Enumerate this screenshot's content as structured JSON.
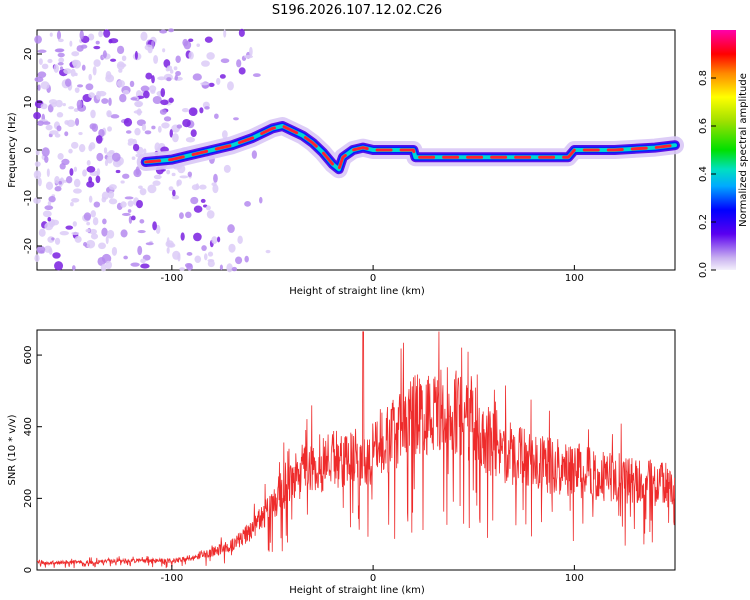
{
  "title": "S196.2026.107.12.02.C26",
  "chart_data": [
    {
      "type": "heatmap",
      "name": "spectrogram",
      "xlabel": "Height of straight line (km)",
      "ylabel": "Frequency (Hz)",
      "xlim": [
        -167,
        150
      ],
      "ylim": [
        -25,
        25
      ],
      "x_ticks": [
        "-100",
        "0",
        "100"
      ],
      "y_ticks": [
        "20",
        "10",
        "0",
        "-10",
        "-20"
      ],
      "colorbar": {
        "label": "Normalized spectral amplitude",
        "range": [
          0,
          1
        ],
        "ticks": [
          "0.0",
          "0.2",
          "0.4",
          "0.6",
          "0.8"
        ]
      },
      "ridge": {
        "x": [
          -113,
          -100,
          -90,
          -80,
          -70,
          -60,
          -50,
          -45,
          -40,
          -35,
          -30,
          -25,
          -20,
          -17,
          -15,
          -10,
          -5,
          0,
          5,
          10,
          15,
          20,
          21,
          50,
          80,
          97,
          100,
          120,
          140,
          150
        ],
        "y": [
          -2.5,
          -2.0,
          -1.0,
          0.0,
          1.0,
          2.5,
          4.5,
          5.0,
          4.0,
          3.0,
          1.5,
          -0.5,
          -3.0,
          -4.0,
          -1.5,
          0.0,
          0.5,
          0.0,
          0.0,
          0.0,
          0.0,
          0.0,
          -1.5,
          -1.5,
          -1.5,
          -1.5,
          0.0,
          0.0,
          0.5,
          1.0
        ]
      }
    },
    {
      "type": "line",
      "name": "snr",
      "xlabel": "Height of straight line (km)",
      "ylabel": "SNR (10 * v/v)",
      "xlim": [
        -167,
        150
      ],
      "ylim": [
        0,
        670
      ],
      "x_ticks": [
        "-100",
        "0",
        "100"
      ],
      "y_ticks": [
        "0",
        "200",
        "400",
        "600"
      ],
      "color": "#ee2b2b",
      "envelope": {
        "x": [
          -167,
          -140,
          -120,
          -100,
          -90,
          -80,
          -70,
          -60,
          -50,
          -45,
          -40,
          -30,
          -20,
          -10,
          -5,
          0,
          10,
          20,
          30,
          40,
          50,
          60,
          70,
          80,
          90,
          100,
          110,
          120,
          130,
          140,
          150
        ],
        "y": [
          20,
          22,
          25,
          25,
          35,
          50,
          70,
          110,
          180,
          230,
          260,
          290,
          310,
          330,
          280,
          340,
          380,
          430,
          440,
          450,
          410,
          340,
          320,
          300,
          290,
          280,
          270,
          260,
          250,
          240,
          230
        ]
      }
    }
  ]
}
